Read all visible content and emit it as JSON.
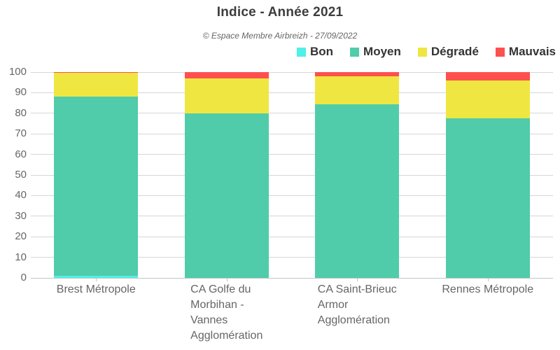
{
  "header": {
    "title": "Indice - Année 2021",
    "subtitle": "© Espace Membre Airbreizh - 27/09/2022"
  },
  "chart_data": {
    "type": "bar",
    "stacked": true,
    "title": "Indice - Année 2021",
    "subtitle": "© Espace Membre Airbreizh - 27/09/2022",
    "categories": [
      "Brest Métropole",
      "CA Golfe du Morbihan - Vannes Agglomération",
      "CA Saint-Brieuc Armor Agglomération",
      "Rennes Métropole"
    ],
    "category_label_lines": [
      [
        "Brest Métropole"
      ],
      [
        "CA Golfe du",
        "Morbihan -",
        "Vannes",
        "Agglomération"
      ],
      [
        "CA Saint-Brieuc",
        "Armor",
        "Agglomération"
      ],
      [
        "Rennes Métropole"
      ]
    ],
    "series": [
      {
        "name": "Bon",
        "color": "#50F0E6",
        "values": [
          1,
          0,
          0,
          0
        ]
      },
      {
        "name": "Moyen",
        "color": "#50CCAA",
        "values": [
          87,
          80,
          84.5,
          77.5
        ]
      },
      {
        "name": "Dégradé",
        "color": "#F0E641",
        "values": [
          11.5,
          17,
          13.5,
          18.5
        ]
      },
      {
        "name": "Mauvais",
        "color": "#FF5050",
        "values": [
          0.5,
          3,
          2,
          4
        ]
      }
    ],
    "xlabel": "",
    "ylabel": "",
    "ylim": [
      0,
      100
    ],
    "yticks": [
      0,
      10,
      20,
      30,
      40,
      50,
      60,
      70,
      80,
      90,
      100
    ],
    "grid": true,
    "legend_position": "top-right",
    "colors": {
      "title_text": "#3d3d3d",
      "subtitle_text": "#666666",
      "axis_labels": "#666666",
      "legend_text": "#333333",
      "gridline": "#d6d6d6",
      "axis_line": "#c6c6c6"
    }
  }
}
